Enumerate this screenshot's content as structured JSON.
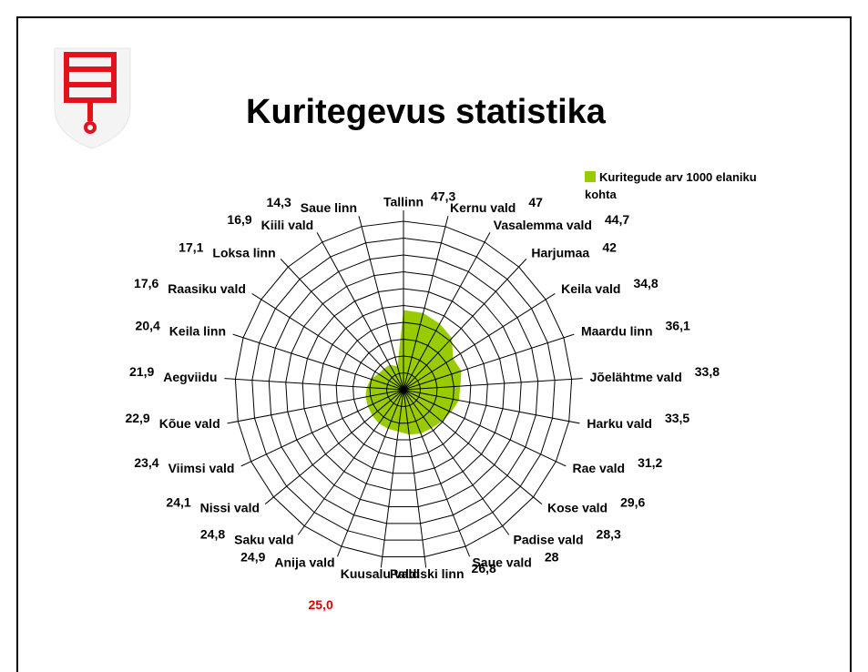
{
  "chart_data": {
    "type": "radar",
    "title": "Kuritegevus statistika",
    "categories": [
      "Tallinn",
      "Kernu vald",
      "Vasalemma vald",
      "Harjumaa",
      "Keila vald",
      "Maardu linn",
      "Jõelähtme vald",
      "Harku vald",
      "Rae vald",
      "Kose vald",
      "Padise vald",
      "Saue vald",
      "Paldiski linn",
      "Kuusalu vald",
      "Anija vald",
      "Saku vald",
      "Nissi vald",
      "Viimsi vald",
      "Kõue vald",
      "Aegviidu",
      "Keila linn",
      "Raasiku vald",
      "Loksa linn",
      "Kiili vald",
      "Saue linn"
    ],
    "series": [
      {
        "name": "Kuritegude arv 1000 elaniku kohta",
        "color": "#99cc00",
        "values": [
          47.3,
          47,
          44.7,
          42,
          34.8,
          36.1,
          33.8,
          33.5,
          31.2,
          29.6,
          28.3,
          28,
          26.8,
          25.0,
          24.9,
          24.8,
          24.1,
          23.4,
          22.9,
          21.9,
          20.4,
          17.6,
          17.1,
          16.9,
          14.3
        ],
        "value_labels": [
          "47,3",
          "47",
          "44,7",
          "42",
          "34,8",
          "36,1",
          "33,8",
          "33,5",
          "31,2",
          "29,6",
          "28,3",
          "28",
          "26,8",
          "25,0",
          "24,9",
          "24,8",
          "24,1",
          "23,4",
          "22,9",
          "21,9",
          "20,4",
          "17,6",
          "17,1",
          "16,9",
          "14,3"
        ]
      }
    ],
    "rlim": [
      0,
      100
    ],
    "rticks": [
      0,
      10,
      20,
      30,
      40,
      50,
      60,
      70,
      80,
      90,
      100
    ],
    "grid": true,
    "highlight": {
      "index": 13,
      "color": "#e00000"
    },
    "legend": "top-right"
  }
}
